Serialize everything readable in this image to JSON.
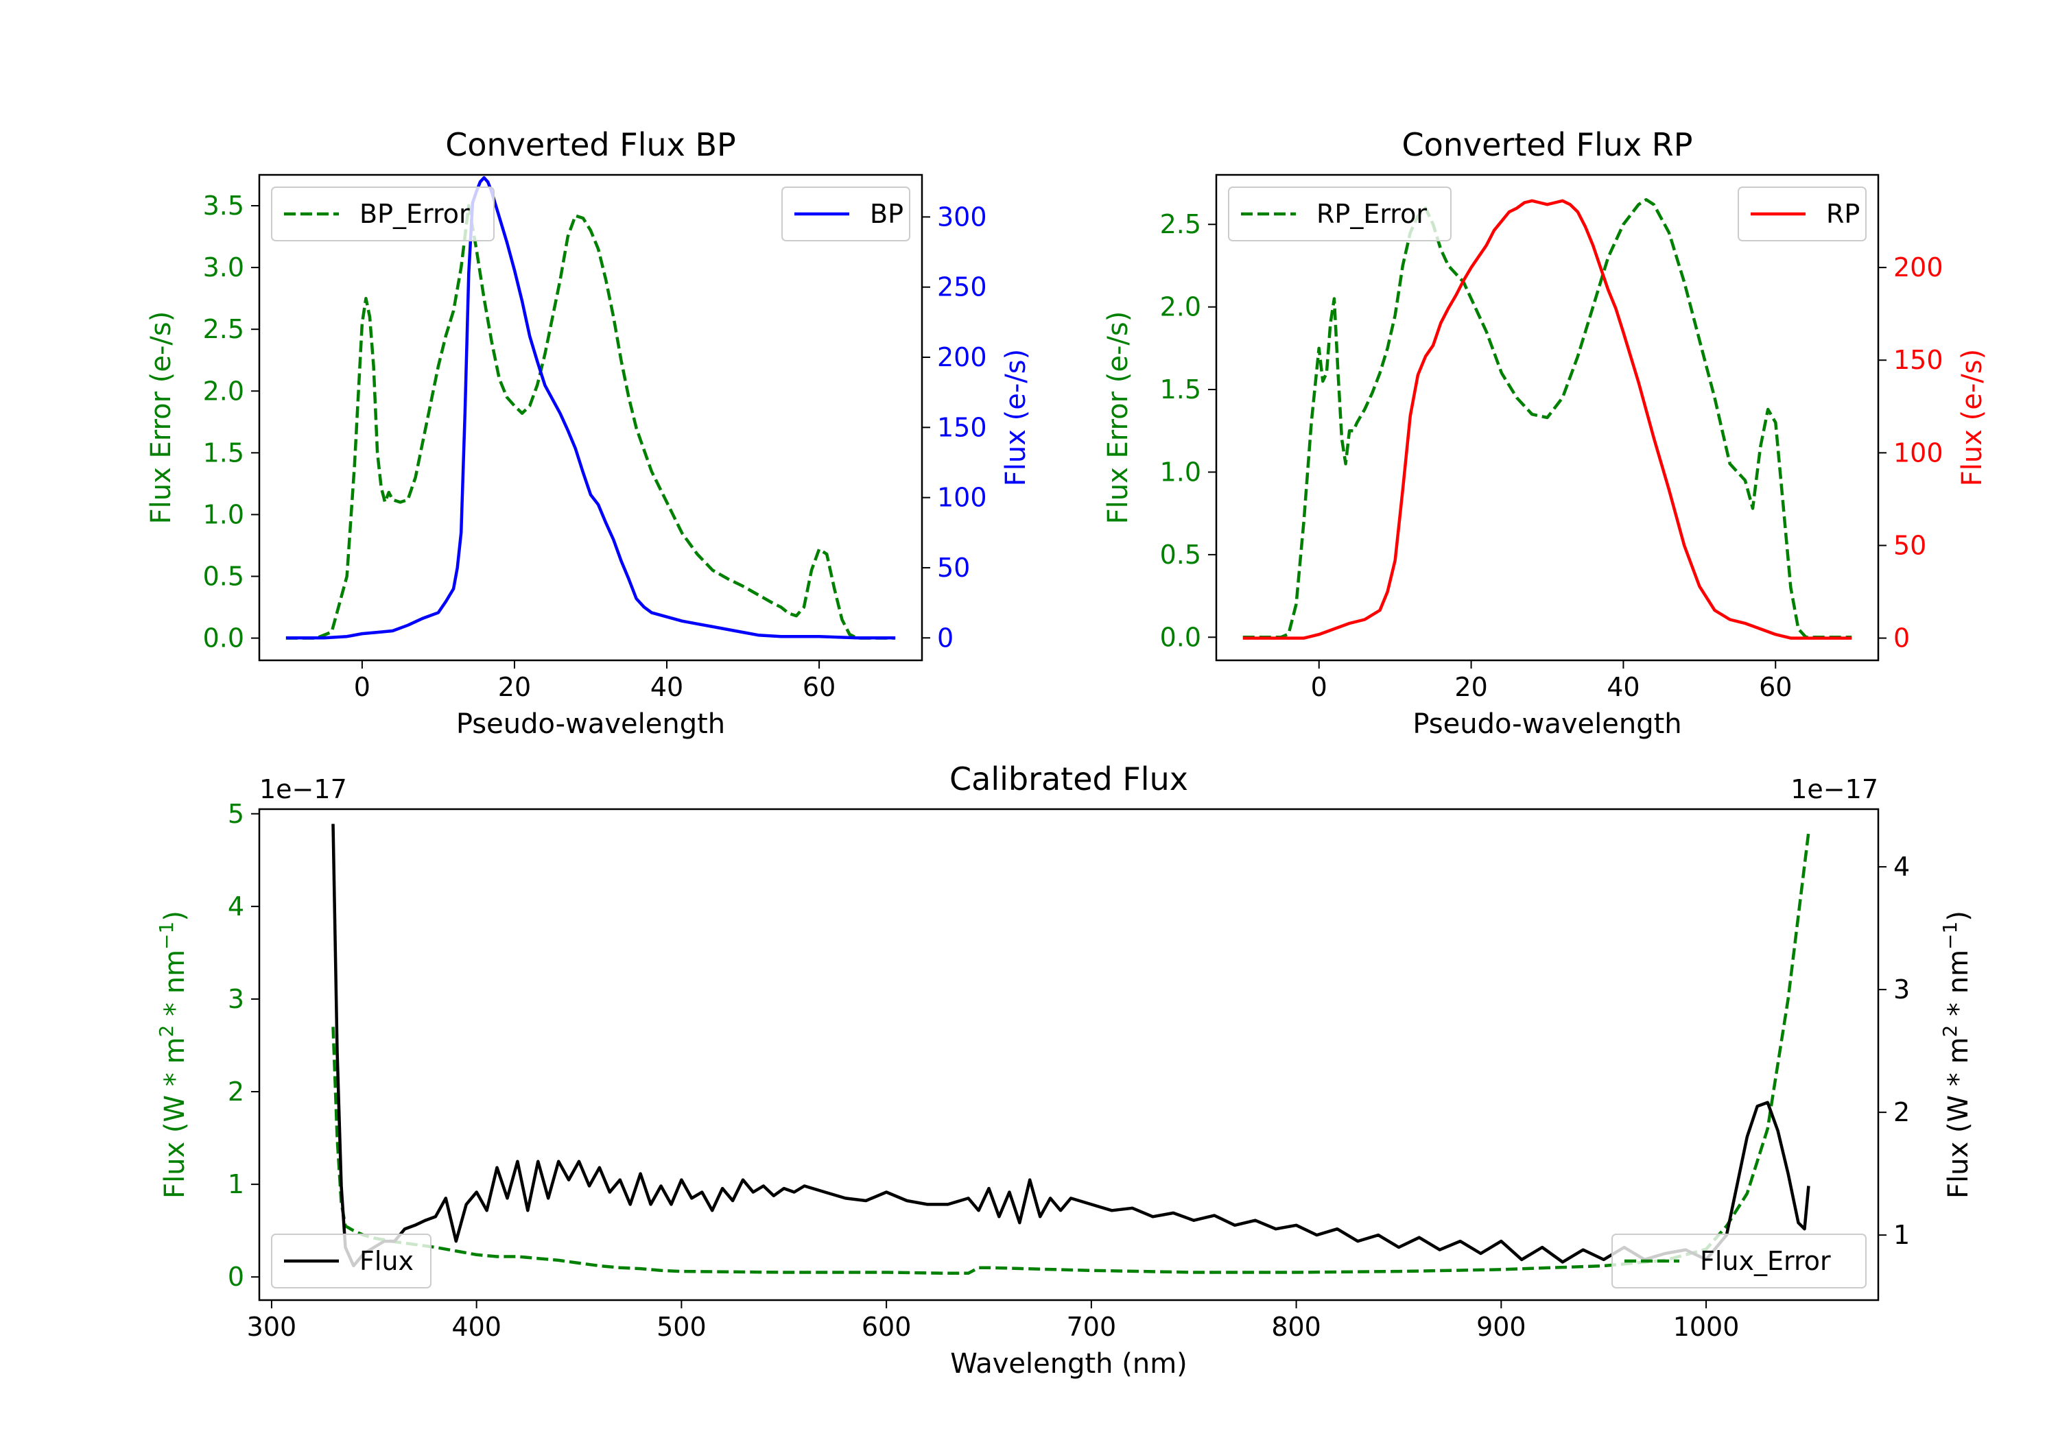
{
  "colors": {
    "error": "#008000",
    "bp": "#0000ff",
    "rp": "#ff0000",
    "flux": "#000000",
    "legend_border": "#cccccc"
  },
  "chart_data": [
    {
      "id": "bp",
      "type": "line",
      "title": "Converted Flux BP",
      "xlabel": "Pseudo-wavelength",
      "xlim": [
        -13.5,
        73.5
      ],
      "xticks": [
        0,
        20,
        40,
        60
      ],
      "left_axis": {
        "label": "Flux Error (e-/s)",
        "ylim": [
          -0.18,
          3.75
        ],
        "ticks": [
          0.0,
          0.5,
          1.0,
          1.5,
          2.0,
          2.5,
          3.0,
          3.5
        ],
        "color_key": "error"
      },
      "right_axis": {
        "label": "Flux (e-/s)",
        "ylim": [
          -16,
          330
        ],
        "ticks": [
          0,
          50,
          100,
          150,
          200,
          250,
          300
        ],
        "color_key": "bp"
      },
      "series": [
        {
          "name": "BP_Error",
          "axis": "left",
          "style": "dashed",
          "color_key": "error",
          "x": [
            -10,
            -6,
            -4,
            -2,
            -1,
            0,
            0.5,
            1,
            1.5,
            2,
            2.5,
            3,
            3.5,
            4,
            5,
            6,
            7,
            8,
            9,
            10,
            11,
            12,
            13,
            14,
            15,
            16,
            17,
            18,
            19,
            20,
            21,
            22,
            23,
            24,
            25,
            26,
            27,
            28,
            29,
            30,
            31,
            32,
            33,
            34,
            35,
            36,
            38,
            40,
            42,
            44,
            46,
            48,
            50,
            52,
            54,
            55,
            56,
            57,
            58,
            59,
            60,
            61,
            62,
            63,
            64,
            65,
            66,
            70
          ],
          "values": [
            0.0,
            0.0,
            0.05,
            0.5,
            1.4,
            2.55,
            2.75,
            2.6,
            2.2,
            1.5,
            1.22,
            1.1,
            1.18,
            1.12,
            1.1,
            1.12,
            1.3,
            1.6,
            1.9,
            2.2,
            2.45,
            2.65,
            3.0,
            3.5,
            3.15,
            2.75,
            2.4,
            2.1,
            1.95,
            1.88,
            1.82,
            1.88,
            2.05,
            2.3,
            2.6,
            2.9,
            3.25,
            3.42,
            3.4,
            3.3,
            3.15,
            2.9,
            2.6,
            2.25,
            1.95,
            1.7,
            1.35,
            1.1,
            0.85,
            0.68,
            0.55,
            0.48,
            0.42,
            0.35,
            0.28,
            0.25,
            0.2,
            0.18,
            0.25,
            0.55,
            0.72,
            0.68,
            0.4,
            0.15,
            0.03,
            0.0,
            0.0,
            0.0
          ]
        },
        {
          "name": "BP",
          "axis": "right",
          "style": "solid",
          "color_key": "bp",
          "x": [
            -10,
            -5,
            -2,
            0,
            2,
            4,
            6,
            8,
            10,
            11,
            12,
            12.5,
            13,
            13.5,
            14,
            14.5,
            15,
            15.5,
            16,
            16.5,
            17,
            18,
            19,
            20,
            21,
            22,
            23,
            24,
            25,
            26,
            27,
            28,
            29,
            30,
            31,
            32,
            33,
            34,
            35,
            36,
            37,
            38,
            40,
            42,
            44,
            46,
            48,
            50,
            52,
            55,
            60,
            65,
            70
          ],
          "values": [
            0,
            0,
            1,
            3,
            4,
            5,
            9,
            14,
            18,
            26,
            35,
            50,
            75,
            160,
            260,
            310,
            318,
            325,
            328,
            325,
            318,
            300,
            282,
            262,
            240,
            215,
            197,
            180,
            170,
            160,
            148,
            135,
            118,
            102,
            95,
            82,
            70,
            55,
            42,
            28,
            22,
            18,
            15,
            12,
            10,
            8,
            6,
            4,
            2,
            1,
            1,
            0,
            0
          ]
        }
      ],
      "legends": [
        {
          "name": "BP_Error",
          "position": "upper left"
        },
        {
          "name": "BP",
          "position": "upper right"
        }
      ]
    },
    {
      "id": "rp",
      "type": "line",
      "title": "Converted Flux RP",
      "xlabel": "Pseudo-wavelength",
      "xlim": [
        -13.5,
        73.5
      ],
      "xticks": [
        0,
        20,
        40,
        60
      ],
      "left_axis": {
        "label": "Flux Error (e-/s)",
        "ylim": [
          -0.14,
          2.8
        ],
        "ticks": [
          0.0,
          0.5,
          1.0,
          1.5,
          2.0,
          2.5
        ],
        "color_key": "error"
      },
      "right_axis": {
        "label": "Flux (e-/s)",
        "ylim": [
          -12,
          250
        ],
        "ticks": [
          0,
          50,
          100,
          150,
          200
        ],
        "color_key": "rp"
      },
      "series": [
        {
          "name": "RP_Error",
          "axis": "left",
          "style": "dashed",
          "color_key": "error",
          "x": [
            -10,
            -5,
            -4,
            -3,
            -2,
            -1,
            0,
            0.5,
            1,
            1.5,
            2,
            2.5,
            3,
            3.5,
            4,
            4.5,
            5,
            6,
            7,
            8,
            9,
            10,
            11,
            12,
            13,
            14,
            15,
            16,
            17,
            18,
            19,
            20,
            22,
            24,
            26,
            28,
            30,
            32,
            34,
            36,
            38,
            40,
            42,
            43,
            44,
            46,
            48,
            50,
            52,
            54,
            55,
            56,
            57,
            58,
            59,
            60,
            61,
            62,
            63,
            64,
            70
          ],
          "values": [
            0.0,
            0.0,
            0.02,
            0.2,
            0.7,
            1.3,
            1.75,
            1.55,
            1.6,
            1.9,
            2.05,
            1.6,
            1.2,
            1.05,
            1.25,
            1.25,
            1.3,
            1.38,
            1.48,
            1.6,
            1.75,
            1.95,
            2.25,
            2.45,
            2.55,
            2.6,
            2.5,
            2.35,
            2.25,
            2.2,
            2.15,
            2.05,
            1.85,
            1.6,
            1.45,
            1.35,
            1.33,
            1.45,
            1.7,
            2.0,
            2.3,
            2.5,
            2.62,
            2.65,
            2.62,
            2.45,
            2.15,
            1.8,
            1.45,
            1.05,
            1.0,
            0.95,
            0.78,
            1.15,
            1.38,
            1.3,
            0.8,
            0.3,
            0.05,
            0.0,
            0.0
          ]
        },
        {
          "name": "RP",
          "axis": "right",
          "style": "solid",
          "color_key": "rp",
          "x": [
            -10,
            -5,
            -2,
            0,
            2,
            4,
            6,
            8,
            9,
            10,
            11,
            12,
            13,
            14,
            15,
            16,
            17,
            18,
            19,
            20,
            21,
            22,
            23,
            24,
            25,
            26,
            27,
            28,
            29,
            30,
            31,
            32,
            33,
            34,
            35,
            36,
            37,
            38,
            39,
            40,
            42,
            44,
            46,
            48,
            50,
            52,
            54,
            56,
            58,
            60,
            62,
            65,
            70
          ],
          "values": [
            0,
            0,
            0,
            2,
            5,
            8,
            10,
            15,
            25,
            42,
            80,
            120,
            142,
            152,
            158,
            170,
            178,
            185,
            193,
            200,
            206,
            212,
            220,
            225,
            230,
            232,
            235,
            236,
            235,
            234,
            235,
            236,
            234,
            230,
            222,
            212,
            200,
            188,
            178,
            165,
            138,
            108,
            80,
            50,
            28,
            15,
            10,
            8,
            5,
            2,
            0,
            0,
            0
          ]
        }
      ],
      "legends": [
        {
          "name": "RP_Error",
          "position": "upper left"
        },
        {
          "name": "RP",
          "position": "upper right"
        }
      ]
    },
    {
      "id": "calib",
      "type": "line",
      "title": "Calibrated Flux",
      "xlabel": "Wavelength (nm)",
      "xlim": [
        294,
        1084
      ],
      "xticks": [
        300,
        400,
        500,
        600,
        700,
        800,
        900,
        1000
      ],
      "left_axis": {
        "label": "Flux (W * m^2 * nm^-1)",
        "label_base": "Flux (W * m",
        "label_exp1": "2",
        "label_mid": " * nm",
        "label_exp2": "−1",
        "label_end": ")",
        "ylim": [
          -2.5e-18,
          5.05e-17
        ],
        "ticks": [
          0,
          1,
          2,
          3,
          4,
          5
        ],
        "offset": "1e−17",
        "color_key": "error"
      },
      "right_axis": {
        "label": "Flux (W * m^2 * nm^-1)",
        "label_base": "Flux (W * m",
        "label_exp1": "2",
        "label_mid": " * nm",
        "label_exp2": "−1",
        "label_end": ")",
        "ylim": [
          4.7e-18,
          4.47e-17
        ],
        "ticks": [
          1,
          2,
          3,
          4
        ],
        "offset": "1e−17",
        "color_key": "flux"
      },
      "series": [
        {
          "name": "Flux_Error",
          "axis": "left",
          "style": "dashed",
          "color_key": "error",
          "x": [
            330,
            332,
            334,
            336,
            340,
            345,
            350,
            360,
            370,
            380,
            390,
            400,
            410,
            420,
            430,
            440,
            450,
            460,
            470,
            480,
            490,
            500,
            550,
            600,
            630,
            640,
            645,
            650,
            700,
            750,
            800,
            850,
            900,
            950,
            980,
            1000,
            1010,
            1020,
            1030,
            1035,
            1040,
            1045,
            1050
          ],
          "values": [
            2.7e-17,
            1.5e-17,
            8e-18,
            5.5e-18,
            5e-18,
            4.5e-18,
            4.2e-18,
            3.8e-18,
            3.5e-18,
            3.2e-18,
            2.8e-18,
            2.4e-18,
            2.2e-18,
            2.2e-18,
            2e-18,
            1.8e-18,
            1.5e-18,
            1.2e-18,
            1e-18,
            9e-19,
            7e-19,
            6e-19,
            5e-19,
            5e-19,
            4e-19,
            4e-19,
            1e-18,
            1e-18,
            7e-19,
            5e-19,
            5e-19,
            6e-19,
            8e-19,
            1.2e-18,
            1.8e-18,
            3e-18,
            5.5e-18,
            9e-18,
            1.6e-17,
            2.3e-17,
            3e-17,
            3.9e-17,
            4.8e-17
          ]
        },
        {
          "name": "Flux",
          "axis": "right",
          "style": "solid",
          "color_key": "flux",
          "x": [
            330,
            332,
            334,
            336,
            340,
            345,
            350,
            355,
            360,
            365,
            370,
            375,
            380,
            385,
            390,
            395,
            400,
            405,
            410,
            415,
            420,
            425,
            430,
            435,
            440,
            445,
            450,
            455,
            460,
            465,
            470,
            475,
            480,
            485,
            490,
            495,
            500,
            505,
            510,
            515,
            520,
            525,
            530,
            535,
            540,
            545,
            550,
            555,
            560,
            570,
            580,
            590,
            600,
            610,
            620,
            630,
            640,
            645,
            650,
            655,
            660,
            665,
            670,
            675,
            680,
            685,
            690,
            700,
            710,
            720,
            730,
            740,
            750,
            760,
            770,
            780,
            790,
            800,
            810,
            820,
            830,
            840,
            850,
            860,
            870,
            880,
            890,
            900,
            910,
            920,
            930,
            940,
            950,
            960,
            970,
            980,
            990,
            1000,
            1010,
            1015,
            1020,
            1025,
            1030,
            1035,
            1040,
            1045,
            1048,
            1050
          ],
          "values": [
            4.35e-17,
            2.5e-17,
            1.4e-17,
            9e-18,
            7.5e-18,
            8.5e-18,
            9e-18,
            9.5e-18,
            9.5e-18,
            1.05e-17,
            1.08e-17,
            1.12e-17,
            1.15e-17,
            1.3e-17,
            9.5e-18,
            1.25e-17,
            1.35e-17,
            1.2e-17,
            1.55e-17,
            1.3e-17,
            1.6e-17,
            1.2e-17,
            1.6e-17,
            1.3e-17,
            1.6e-17,
            1.45e-17,
            1.6e-17,
            1.4e-17,
            1.55e-17,
            1.35e-17,
            1.45e-17,
            1.25e-17,
            1.5e-17,
            1.25e-17,
            1.4e-17,
            1.25e-17,
            1.45e-17,
            1.3e-17,
            1.35e-17,
            1.2e-17,
            1.38e-17,
            1.28e-17,
            1.45e-17,
            1.35e-17,
            1.4e-17,
            1.32e-17,
            1.38e-17,
            1.35e-17,
            1.4e-17,
            1.35e-17,
            1.3e-17,
            1.28e-17,
            1.35e-17,
            1.28e-17,
            1.25e-17,
            1.25e-17,
            1.3e-17,
            1.2e-17,
            1.38e-17,
            1.15e-17,
            1.35e-17,
            1.1e-17,
            1.45e-17,
            1.15e-17,
            1.3e-17,
            1.2e-17,
            1.3e-17,
            1.25e-17,
            1.2e-17,
            1.22e-17,
            1.15e-17,
            1.18e-17,
            1.12e-17,
            1.16e-17,
            1.08e-17,
            1.12e-17,
            1.05e-17,
            1.08e-17,
            1e-17,
            1.05e-17,
            9.5e-18,
            1e-17,
            9e-18,
            9.8e-18,
            8.8e-18,
            9.5e-18,
            8.5e-18,
            9.5e-18,
            8e-18,
            9e-18,
            7.8e-18,
            8.8e-18,
            8e-18,
            9e-18,
            8e-18,
            8.5e-18,
            8.8e-18,
            8e-18,
            1e-17,
            1.4e-17,
            1.8e-17,
            2.05e-17,
            2.08e-17,
            1.85e-17,
            1.5e-17,
            1.1e-17,
            1.05e-17,
            1.4e-17
          ]
        }
      ],
      "legends": [
        {
          "name": "Flux",
          "position": "lower left"
        },
        {
          "name": "Flux_Error",
          "position": "lower right"
        }
      ]
    }
  ]
}
